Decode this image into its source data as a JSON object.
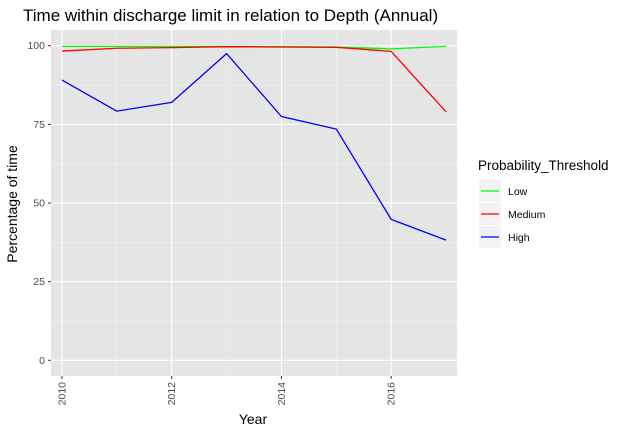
{
  "chart_data": {
    "type": "line",
    "title": "Time within discharge limit in relation to Depth (Annual)",
    "xlabel": "Year",
    "ylabel": "Percentage of time",
    "xlim": [
      2009.8,
      2017.2
    ],
    "ylim": [
      -5,
      105
    ],
    "x_ticks": [
      2010,
      2012,
      2014,
      2016
    ],
    "y_ticks": [
      0,
      25,
      50,
      75,
      100
    ],
    "x_tick_labels": [
      "2010",
      "2012",
      "2014",
      "2016"
    ],
    "y_tick_labels": [
      "0",
      "25",
      "50",
      "75",
      "100"
    ],
    "grid": true,
    "background": "#e5e5e5",
    "legend": {
      "title": "Probability_Threshold",
      "position": "right"
    },
    "x": [
      2010,
      2011,
      2012,
      2013,
      2014,
      2015,
      2016,
      2017
    ],
    "series": [
      {
        "name": "Low",
        "color": "#00ff00",
        "values": [
          99.8,
          99.8,
          99.8,
          99.8,
          99.7,
          99.6,
          99.0,
          99.8
        ]
      },
      {
        "name": "Medium",
        "color": "#ff0000",
        "values": [
          98.3,
          99.2,
          99.4,
          99.7,
          99.6,
          99.5,
          98.2,
          79.0
        ]
      },
      {
        "name": "High",
        "color": "#0000ff",
        "values": [
          89.1,
          79.2,
          82.0,
          97.5,
          77.5,
          73.5,
          44.8,
          38.2
        ]
      }
    ]
  }
}
